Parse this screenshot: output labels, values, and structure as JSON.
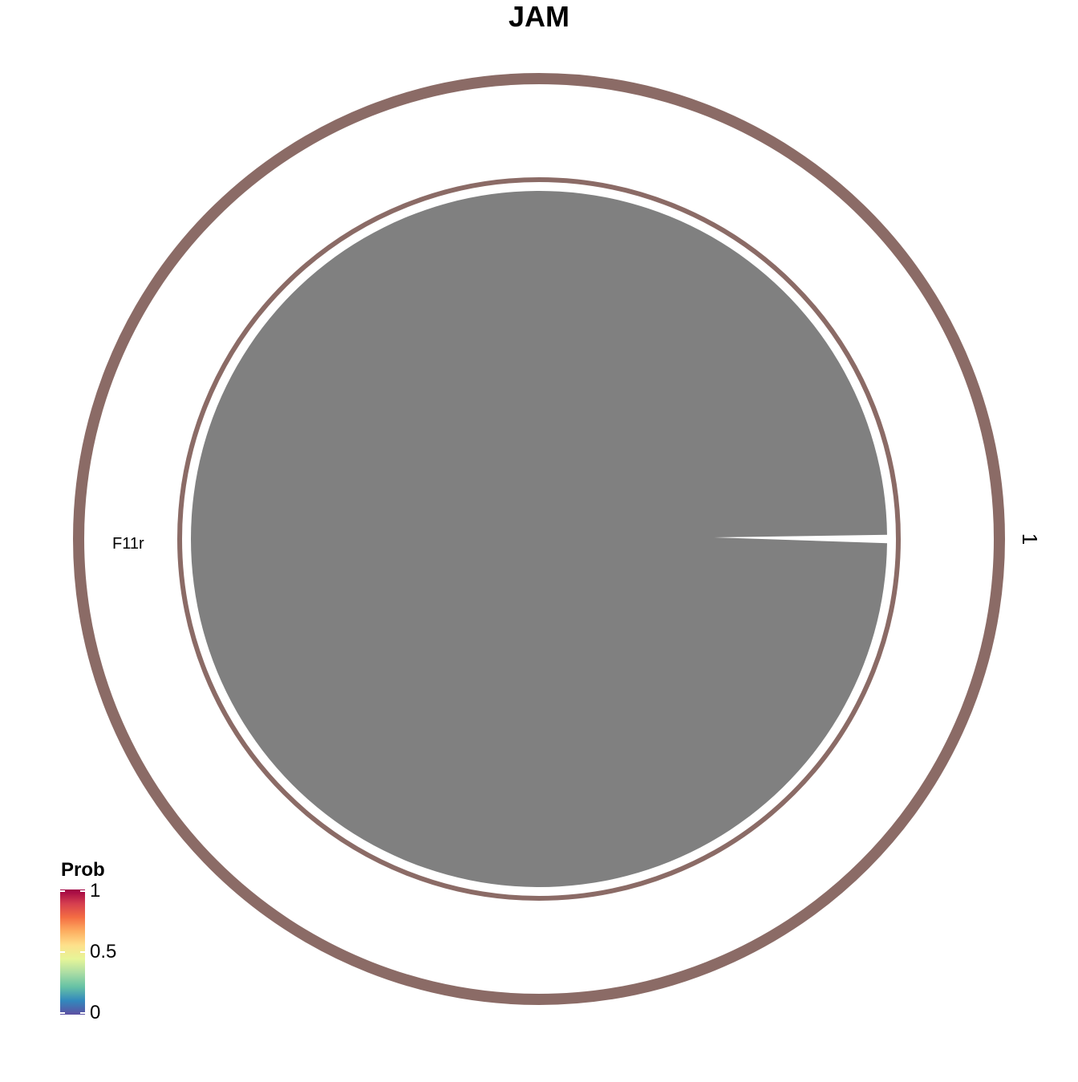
{
  "title": "JAM",
  "chart_data": {
    "type": "chord",
    "title": "JAM",
    "sectors": [
      {
        "name": "1",
        "color": "#8B6B66"
      }
    ],
    "inner_labels": [
      {
        "name": "F11r",
        "color": "#8B6B66"
      }
    ],
    "links": [
      {
        "from": "F11r",
        "to": "F11r",
        "prob": 1,
        "color": "#808080"
      }
    ],
    "legend": {
      "title": "Prob",
      "ticks": [
        {
          "value": 0,
          "label": "0"
        },
        {
          "value": 0.5,
          "label": "0.5"
        },
        {
          "value": 1,
          "label": "1"
        }
      ],
      "colors": [
        "#5E4FA2",
        "#3288BD",
        "#66C2A5",
        "#ABDDA4",
        "#E6F598",
        "#FEE08B",
        "#FDAE61",
        "#F46D43",
        "#D53E4F",
        "#9E0142"
      ],
      "placement": "bottom-left"
    }
  }
}
